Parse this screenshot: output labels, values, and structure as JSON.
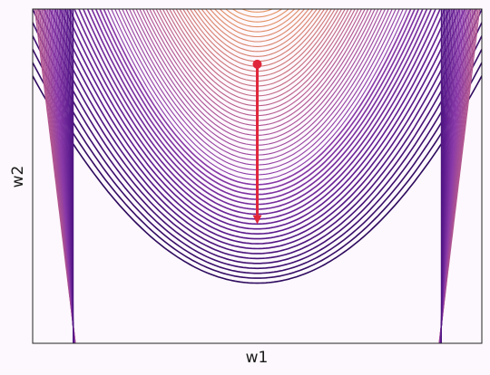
{
  "chart_data": {
    "type": "contour",
    "xlabel": "w1",
    "ylabel": "w2",
    "xlim": [
      -1,
      1
    ],
    "ylim": [
      0,
      1
    ],
    "grid": false,
    "legend": "none",
    "function": "valley",
    "contour_levels": 60,
    "colormap": [
      "#2d0a5e",
      "#5a1a8c",
      "#8a3aa8",
      "#b2578f",
      "#d67e6e",
      "#ef9f5a"
    ],
    "arrow": {
      "start": [
        0,
        0.835
      ],
      "end": [
        0,
        0.37
      ],
      "color": "#e0263a"
    }
  }
}
